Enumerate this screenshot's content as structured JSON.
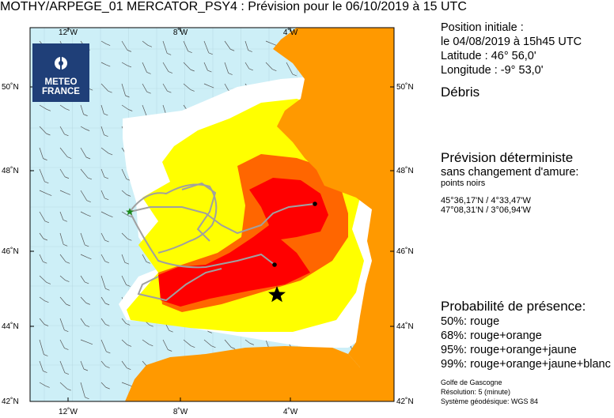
{
  "header": {
    "title": "MOTHY/ARPEGE_01 MERCATOR_PSY4   : Prévision pour le 06/10/2019 à 15 UTC"
  },
  "initial": {
    "heading": "Position initiale :",
    "date": "le 04/08/2019 à 15h45 UTC",
    "latitude": "Latitude : 46° 56,0'",
    "longitude": "Longitude : -9° 53,0'"
  },
  "object_type": "Débris",
  "deterministic": {
    "heading": "Prévision déterministe",
    "subtitle": "sans changement d'amure:",
    "note": "points noirs",
    "pos1": "45°36,17'N / 4°33,47'W",
    "pos2": "47°08,31'N / 3°06,94'W"
  },
  "probability": {
    "heading": "Probabilité de présence:",
    "items": [
      "50%: rouge",
      "68%: rouge+orange",
      "95%: rouge+orange+jaune",
      "99%: rouge+orange+jaune+blanc"
    ]
  },
  "footer": {
    "zone": "Golfe de Gascogne",
    "resolution": "Résolution: 5 (minute)",
    "geodesy": "Système géodésique: WGS 84"
  },
  "logo": {
    "line1": "METEO",
    "line2": "FRANCE"
  },
  "map": {
    "lon_ticks": [
      "12˚W",
      "8˚W",
      "4˚W"
    ],
    "lat_ticks": [
      "50˚N",
      "48˚N",
      "46˚N",
      "44˚N",
      "42˚N"
    ],
    "colors": {
      "sea": "#cdeff7",
      "land": "#ff9900",
      "yellow": "#ffff00",
      "orange": "#ff6600",
      "red": "#ff0000",
      "white": "#ffffff",
      "track": "#a0a0a0"
    },
    "initial_position": {
      "lat": 46.93,
      "lon": -9.88
    },
    "deterministic_points": [
      {
        "lat": 45.6,
        "lon": -4.56
      },
      {
        "lat": 47.14,
        "lon": -3.12
      }
    ]
  }
}
